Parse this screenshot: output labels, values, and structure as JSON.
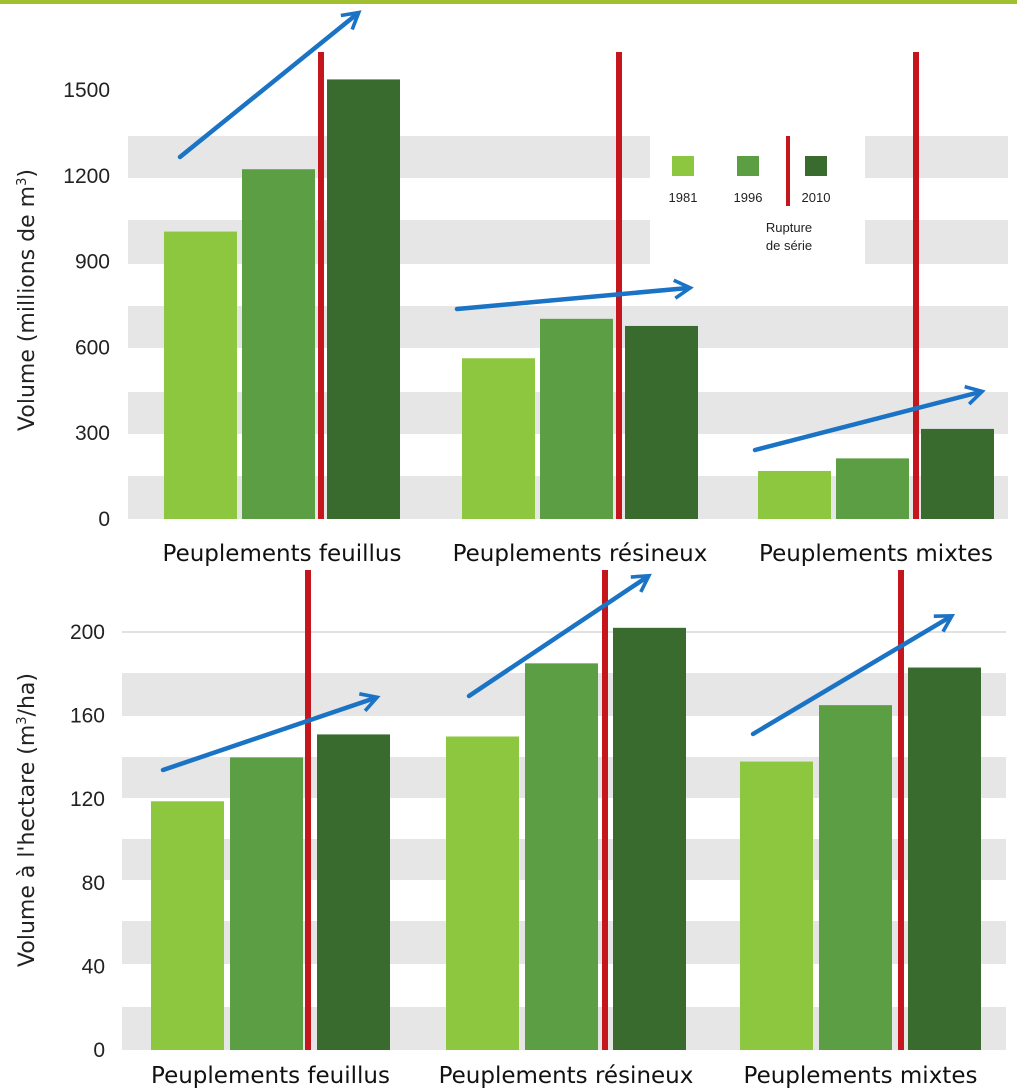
{
  "colors": {
    "c1981": "#8dc63f",
    "c1996": "#5c9e44",
    "c2010": "#3a6b2e",
    "rupture": "#c4161c",
    "arrow": "#1a73c4",
    "band": "#e6e6e6",
    "top_rule": "#a0c030"
  },
  "legend": {
    "years": [
      "1981",
      "1996",
      "2010"
    ],
    "rupture_line1": "Rupture",
    "rupture_line2": "de série"
  },
  "chart_data": [
    {
      "type": "bar",
      "ylabel_main": "Volume (millions de m",
      "ylabel_sup": "3",
      "ylabel_end": ")",
      "categories": [
        "Peuplements feuillus",
        "Peuplements résineux",
        "Peuplements mixtes"
      ],
      "yticks": [
        "0",
        "300",
        "600",
        "900",
        "1200",
        "1500"
      ],
      "ylim": [
        0,
        1500
      ],
      "grid": "alternating bands",
      "series": [
        {
          "name": "1981",
          "values": [
            1005,
            562,
            168
          ]
        },
        {
          "name": "1996",
          "values": [
            1223,
            700,
            212
          ]
        },
        {
          "name": "2010",
          "values": [
            1537,
            675,
            315
          ]
        }
      ],
      "rupture_between": [
        "1996",
        "2010"
      ],
      "trend_arrows": "increasing for each category"
    },
    {
      "type": "bar",
      "ylabel_main": "Volume à l'hectare (m",
      "ylabel_sup": "3",
      "ylabel_end": "/ha)",
      "categories": [
        "Peuplements feuillus",
        "Peuplements résineux",
        "Peuplements mixtes"
      ],
      "yticks": [
        "0",
        "40",
        "80",
        "120",
        "160",
        "200"
      ],
      "ylim": [
        0,
        200
      ],
      "grid": "alternating bands",
      "series": [
        {
          "name": "1981",
          "values": [
            119,
            150,
            138
          ]
        },
        {
          "name": "1996",
          "values": [
            140,
            185,
            165
          ]
        },
        {
          "name": "2010",
          "values": [
            151,
            202,
            183
          ]
        }
      ],
      "rupture_between": [
        "1996",
        "2010"
      ],
      "trend_arrows": "increasing for each category"
    }
  ]
}
